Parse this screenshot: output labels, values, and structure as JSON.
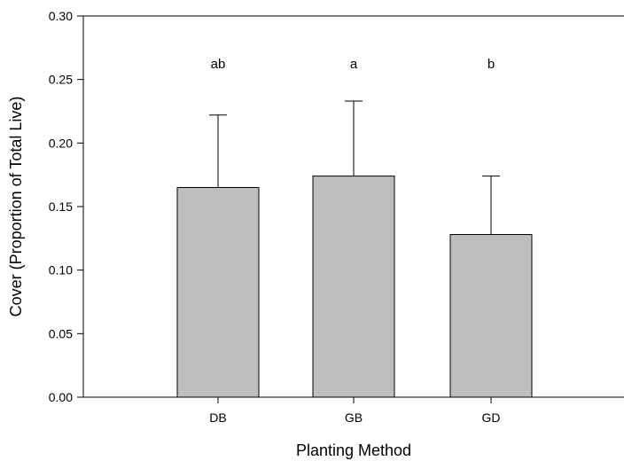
{
  "chart_data": {
    "type": "bar",
    "title": "",
    "xlabel": "Planting Method",
    "ylabel": "Cover (Proportion of Total Live)",
    "ylim": [
      0,
      0.3
    ],
    "yticks": [
      "0.00",
      "0.05",
      "0.10",
      "0.15",
      "0.20",
      "0.25",
      "0.30"
    ],
    "categories": [
      "DB",
      "GB",
      "GD"
    ],
    "values": [
      0.165,
      0.174,
      0.128
    ],
    "error_upper": [
      0.222,
      0.233,
      0.174
    ],
    "significance_letters": [
      "ab",
      "a",
      "b"
    ],
    "grid": false,
    "legend": "none",
    "bar_color": "#bebebe",
    "edge_color": "#000000"
  }
}
